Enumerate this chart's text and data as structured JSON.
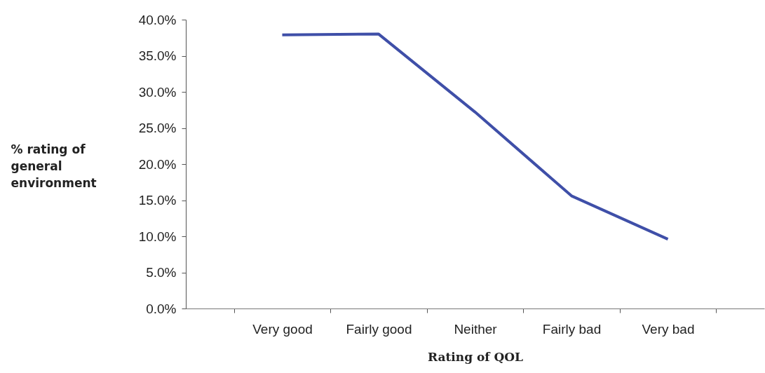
{
  "chart_data": {
    "type": "line",
    "xlabel": "Rating of QOL",
    "ylabel": "% rating of general environment",
    "categories": [
      "Very good",
      "Fairly good",
      "Neither",
      "Fairly bad",
      "Very bad"
    ],
    "series": [
      {
        "color": "#3f4fa8",
        "values": [
          37.9,
          38.0,
          27.2,
          15.6,
          9.6
        ]
      }
    ],
    "ylim": [
      0,
      40
    ],
    "yticks": [
      {
        "value": 0,
        "label": "0.0%"
      },
      {
        "value": 5,
        "label": "5.0%"
      },
      {
        "value": 10,
        "label": "10.0%"
      },
      {
        "value": 15,
        "label": "15.0%"
      },
      {
        "value": 20,
        "label": "20.0%"
      },
      {
        "value": 25,
        "label": "25.0%"
      },
      {
        "value": 30,
        "label": "30.0%"
      },
      {
        "value": 35,
        "label": "35.0%"
      },
      {
        "value": 40,
        "label": "40.0%"
      }
    ],
    "grid": false,
    "legend": false,
    "marker": "none",
    "line_style": "solid"
  }
}
